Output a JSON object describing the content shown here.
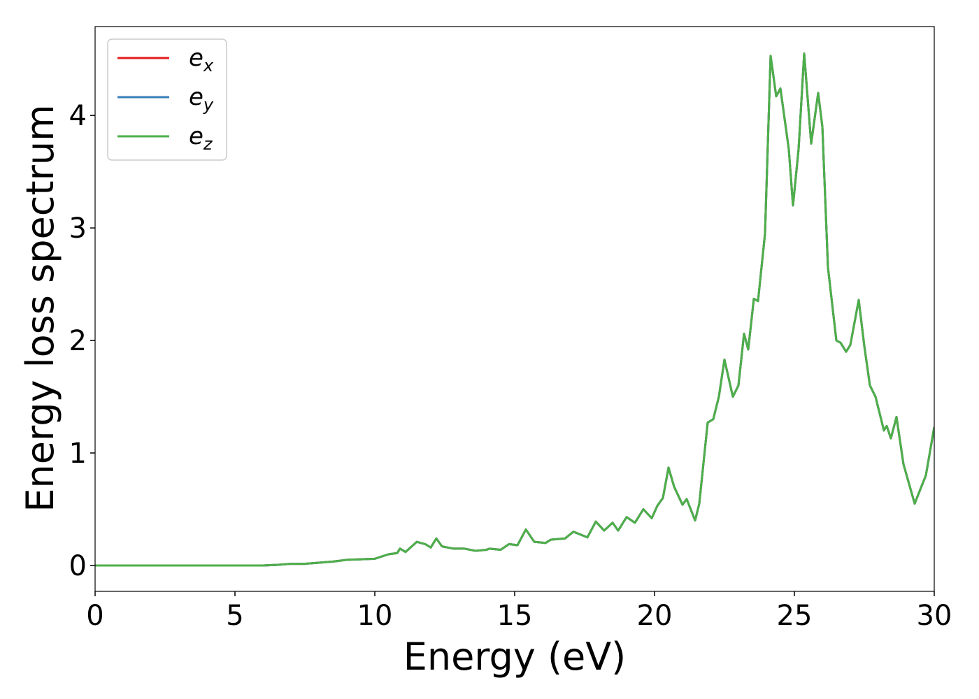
{
  "chart_data": {
    "type": "line",
    "xlabel": "Energy (eV)",
    "ylabel": "Energy loss spectrum",
    "x": [
      0,
      1,
      2,
      3,
      4,
      5,
      6,
      6.5,
      7,
      7.5,
      8,
      8.5,
      9,
      9.5,
      10,
      10.5,
      10.8,
      10.9,
      11.1,
      11.5,
      11.8,
      12,
      12.2,
      12.4,
      12.8,
      13.2,
      13.6,
      14,
      14.1,
      14.5,
      14.8,
      15.1,
      15.4,
      15.7,
      16.1,
      16.3,
      16.8,
      17.1,
      17.6,
      17.9,
      18.2,
      18.5,
      18.7,
      19,
      19.3,
      19.6,
      19.9,
      20.1,
      20.3,
      20.5,
      20.7,
      21,
      21.15,
      21.45,
      21.6,
      21.9,
      22.1,
      22.3,
      22.5,
      22.8,
      23,
      23.2,
      23.35,
      23.55,
      23.7,
      23.95,
      24.15,
      24.35,
      24.5,
      24.8,
      24.95,
      25.15,
      25.35,
      25.6,
      25.85,
      26,
      26.2,
      26.5,
      26.65,
      26.85,
      27,
      27.3,
      27.5,
      27.7,
      27.9,
      28.2,
      28.3,
      28.45,
      28.65,
      28.9,
      29.3,
      29.7,
      30
    ],
    "series": [
      {
        "name": "ex",
        "color": "#e41a1c",
        "values": [
          0,
          0,
          0,
          0,
          0,
          0,
          0,
          0.005,
          0.015,
          0.015,
          0.025,
          0.035,
          0.05,
          0.055,
          0.06,
          0.1,
          0.11,
          0.15,
          0.12,
          0.21,
          0.19,
          0.16,
          0.24,
          0.17,
          0.15,
          0.15,
          0.13,
          0.14,
          0.15,
          0.14,
          0.19,
          0.18,
          0.32,
          0.21,
          0.2,
          0.23,
          0.24,
          0.3,
          0.25,
          0.39,
          0.31,
          0.38,
          0.31,
          0.43,
          0.38,
          0.5,
          0.42,
          0.53,
          0.6,
          0.87,
          0.7,
          0.54,
          0.59,
          0.4,
          0.55,
          1.27,
          1.3,
          1.5,
          1.83,
          1.5,
          1.6,
          2.06,
          1.92,
          2.37,
          2.35,
          2.95,
          4.53,
          4.17,
          4.24,
          3.7,
          3.2,
          3.7,
          4.55,
          3.75,
          4.2,
          3.9,
          2.65,
          2.0,
          1.98,
          1.9,
          1.96,
          2.36,
          1.95,
          1.6,
          1.5,
          1.2,
          1.24,
          1.13,
          1.32,
          0.9,
          0.55,
          0.8,
          1.23
        ]
      },
      {
        "name": "ey",
        "color": "#377eb8",
        "values": [
          0,
          0,
          0,
          0,
          0,
          0,
          0,
          0.005,
          0.015,
          0.015,
          0.025,
          0.035,
          0.05,
          0.055,
          0.06,
          0.1,
          0.11,
          0.15,
          0.12,
          0.21,
          0.19,
          0.16,
          0.24,
          0.17,
          0.15,
          0.15,
          0.13,
          0.14,
          0.15,
          0.14,
          0.19,
          0.18,
          0.32,
          0.21,
          0.2,
          0.23,
          0.24,
          0.3,
          0.25,
          0.39,
          0.31,
          0.38,
          0.31,
          0.43,
          0.38,
          0.5,
          0.42,
          0.53,
          0.6,
          0.87,
          0.7,
          0.54,
          0.59,
          0.4,
          0.55,
          1.27,
          1.3,
          1.5,
          1.83,
          1.5,
          1.6,
          2.06,
          1.92,
          2.37,
          2.35,
          2.95,
          4.53,
          4.17,
          4.24,
          3.7,
          3.2,
          3.7,
          4.55,
          3.75,
          4.2,
          3.9,
          2.65,
          2.0,
          1.98,
          1.9,
          1.96,
          2.36,
          1.95,
          1.6,
          1.5,
          1.2,
          1.24,
          1.13,
          1.32,
          0.9,
          0.55,
          0.8,
          1.23
        ]
      },
      {
        "name": "ez",
        "color": "#4daf4a",
        "values": [
          0,
          0,
          0,
          0,
          0,
          0,
          0,
          0.005,
          0.015,
          0.015,
          0.025,
          0.035,
          0.05,
          0.055,
          0.06,
          0.1,
          0.11,
          0.15,
          0.12,
          0.21,
          0.19,
          0.16,
          0.24,
          0.17,
          0.15,
          0.15,
          0.13,
          0.14,
          0.15,
          0.14,
          0.19,
          0.18,
          0.32,
          0.21,
          0.2,
          0.23,
          0.24,
          0.3,
          0.25,
          0.39,
          0.31,
          0.38,
          0.31,
          0.43,
          0.38,
          0.5,
          0.42,
          0.53,
          0.6,
          0.87,
          0.7,
          0.54,
          0.59,
          0.4,
          0.55,
          1.27,
          1.3,
          1.5,
          1.83,
          1.5,
          1.6,
          2.06,
          1.92,
          2.37,
          2.35,
          2.95,
          4.53,
          4.17,
          4.24,
          3.7,
          3.2,
          3.7,
          4.55,
          3.75,
          4.2,
          3.9,
          2.65,
          2.0,
          1.98,
          1.9,
          1.96,
          2.36,
          1.95,
          1.6,
          1.5,
          1.2,
          1.24,
          1.13,
          1.32,
          0.9,
          0.55,
          0.8,
          1.23
        ]
      }
    ],
    "xlim": [
      0,
      30
    ],
    "xticks": [
      0,
      5,
      10,
      15,
      20,
      25,
      30
    ],
    "ylim": [
      -0.23,
      4.79
    ],
    "yticks": [
      0,
      1,
      2,
      3,
      4
    ],
    "legend": "upper left",
    "grid": false
  }
}
